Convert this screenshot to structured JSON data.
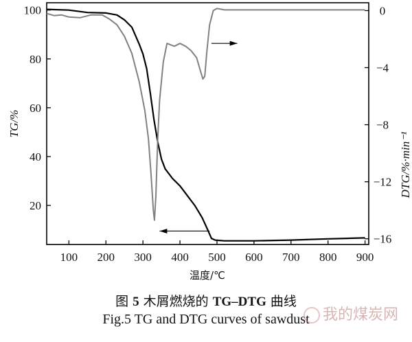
{
  "chart_data": {
    "type": "line",
    "x": {
      "label": "温度/℃",
      "ticks": [
        100,
        200,
        300,
        400,
        500,
        600,
        700,
        800,
        900
      ],
      "range": [
        40,
        910
      ]
    },
    "y_left": {
      "label": "TG/%",
      "ticks": [
        20,
        40,
        60,
        80,
        100
      ],
      "range": [
        4,
        103
      ]
    },
    "y_right": {
      "label": "DTG/%·min⁻¹",
      "ticks": [
        "0",
        "−4",
        "−8",
        "−12",
        "−16"
      ],
      "tick_values": [
        0,
        -4,
        -8,
        -12,
        -16
      ],
      "range": [
        -16.4,
        0.55
      ]
    },
    "series": [
      {
        "name": "TG",
        "axis": "left",
        "color": "#000000",
        "points": [
          [
            40,
            100.3
          ],
          [
            100,
            100
          ],
          [
            150,
            99
          ],
          [
            200,
            98.8
          ],
          [
            230,
            98
          ],
          [
            250,
            96
          ],
          [
            270,
            93
          ],
          [
            290,
            86
          ],
          [
            300,
            82
          ],
          [
            310,
            76
          ],
          [
            320,
            66
          ],
          [
            330,
            55
          ],
          [
            340,
            46
          ],
          [
            350,
            39
          ],
          [
            360,
            35
          ],
          [
            380,
            31
          ],
          [
            400,
            28
          ],
          [
            420,
            24
          ],
          [
            440,
            20
          ],
          [
            460,
            15
          ],
          [
            475,
            10
          ],
          [
            485,
            6.5
          ],
          [
            495,
            5.8
          ],
          [
            520,
            5.5
          ],
          [
            600,
            5.5
          ],
          [
            700,
            5.8
          ],
          [
            800,
            6.3
          ],
          [
            900,
            6.7
          ]
        ]
      },
      {
        "name": "DTG",
        "axis": "right",
        "color": "#808080",
        "points": [
          [
            40,
            -0.2
          ],
          [
            60,
            -0.35
          ],
          [
            80,
            -0.3
          ],
          [
            100,
            -0.45
          ],
          [
            130,
            -0.5
          ],
          [
            160,
            -0.3
          ],
          [
            190,
            -0.3
          ],
          [
            210,
            -0.6
          ],
          [
            230,
            -1
          ],
          [
            250,
            -1.8
          ],
          [
            270,
            -3
          ],
          [
            290,
            -5
          ],
          [
            305,
            -7
          ],
          [
            315,
            -9
          ],
          [
            322,
            -11.5
          ],
          [
            328,
            -14
          ],
          [
            331,
            -14.7
          ],
          [
            335,
            -13
          ],
          [
            340,
            -9
          ],
          [
            345,
            -6.3
          ],
          [
            355,
            -3.6
          ],
          [
            365,
            -2.3
          ],
          [
            375,
            -2.4
          ],
          [
            385,
            -2.5
          ],
          [
            400,
            -2.3
          ],
          [
            415,
            -2.5
          ],
          [
            430,
            -2.8
          ],
          [
            445,
            -3.3
          ],
          [
            455,
            -4.2
          ],
          [
            462,
            -4.8
          ],
          [
            467,
            -4.6
          ],
          [
            473,
            -2.8
          ],
          [
            480,
            -1
          ],
          [
            490,
            0
          ],
          [
            500,
            0.15
          ],
          [
            520,
            0.05
          ],
          [
            600,
            0.05
          ],
          [
            700,
            0.05
          ],
          [
            800,
            0.05
          ],
          [
            900,
            0.05
          ]
        ]
      }
    ],
    "annotations": [
      {
        "type": "arrow",
        "direction": "right",
        "x_from": 485,
        "x_to": 555,
        "y": -2.3,
        "axis": "right"
      },
      {
        "type": "arrow",
        "direction": "left",
        "x_from": 480,
        "x_to": 345,
        "y": 9.5,
        "axis": "left"
      }
    ],
    "grid": false
  },
  "caption": {
    "cn_prefix": "图 ",
    "cn_num": "5",
    "cn_text_a": "  木屑燃烧的 ",
    "cn_bold": "TG–DTG",
    "cn_text_b": " 曲线",
    "en": "Fig.5 TG and DTG curves of sawdust"
  },
  "watermark": "我的煤炭网"
}
